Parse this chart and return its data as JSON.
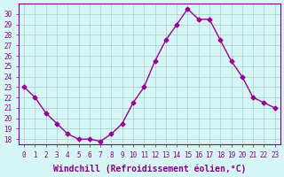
{
  "x": [
    0,
    1,
    2,
    3,
    4,
    5,
    6,
    7,
    8,
    9,
    10,
    11,
    12,
    13,
    14,
    15,
    16,
    17,
    18,
    19,
    20,
    21,
    22,
    23
  ],
  "y": [
    23,
    22,
    20.5,
    19.5,
    18.5,
    18,
    18,
    17.8,
    18.5,
    19.5,
    21.5,
    23,
    25.5,
    27.5,
    29,
    30.5,
    29.5,
    29.5,
    27.5,
    25.5,
    24,
    22,
    21.5,
    21
  ],
  "line_color": "#990099",
  "marker": "D",
  "marker_size": 2.5,
  "background_color": "#d6f5f5",
  "grid_color": "#aacccc",
  "xlabel": "Windchill (Refroidissement éolien,°C)",
  "ylabel": "",
  "ylim": [
    17.5,
    31
  ],
  "xlim": [
    -0.5,
    23.5
  ],
  "yticks": [
    18,
    19,
    20,
    21,
    22,
    23,
    24,
    25,
    26,
    27,
    28,
    29,
    30
  ],
  "xticks": [
    0,
    1,
    2,
    3,
    4,
    5,
    6,
    7,
    8,
    9,
    10,
    11,
    12,
    13,
    14,
    15,
    16,
    17,
    18,
    19,
    20,
    21,
    22,
    23
  ],
  "tick_label_fontsize": 5.5,
  "xlabel_fontsize": 7,
  "tick_color": "#880088",
  "spine_color": "#880088"
}
